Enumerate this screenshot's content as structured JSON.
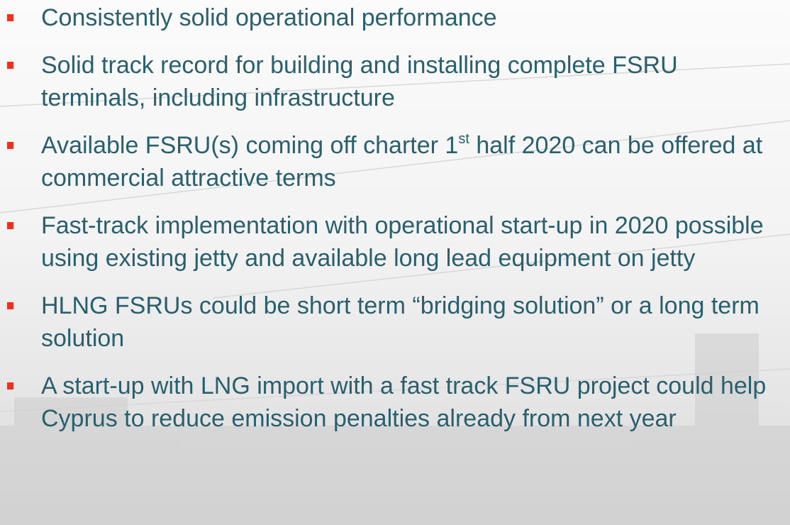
{
  "bullets": [
    {
      "text": "Consistently solid operational performance"
    },
    {
      "text": "Solid track record for building and installing complete FSRU terminals, including infrastructure"
    },
    {
      "text_before": "Available FSRU(s) coming off charter 1",
      "superscript": "st",
      "text_after": " half 2020 can be offered at commercial attractive terms"
    },
    {
      "text": "Fast-track implementation with operational start-up in 2020 possible using existing jetty and available long lead equipment on jetty"
    },
    {
      "text": "HLNG FSRUs could be short term “bridging solution” or a long term solution"
    },
    {
      "text": "A start-up with LNG import with a fast track FSRU project could help Cyprus to reduce emission penalties already from next year"
    }
  ]
}
